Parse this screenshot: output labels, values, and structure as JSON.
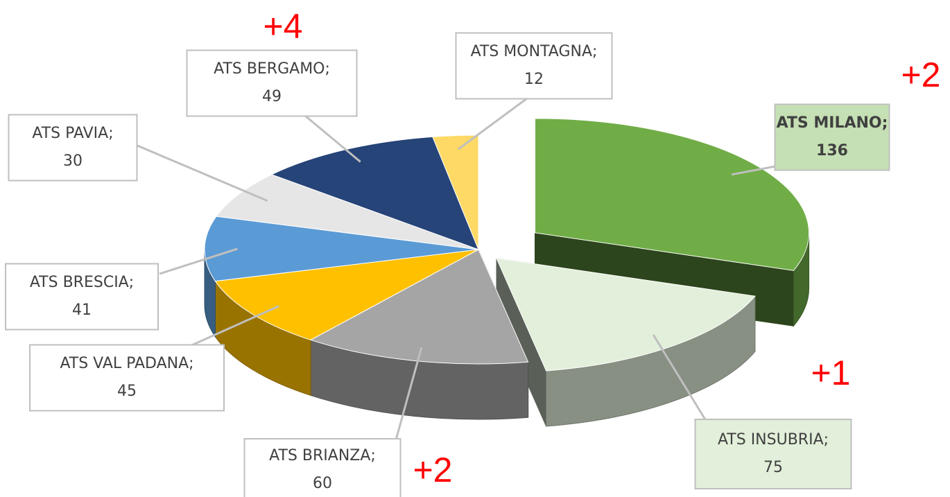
{
  "chart_data": {
    "type": "pie",
    "categories": [
      "ATS MILANO;",
      "ATS INSUBRIA;",
      "ATS BRIANZA;",
      "ATS VAL PADANA;",
      "ATS BRESCIA;",
      "ATS PAVIA;",
      "ATS BERGAMO;",
      "ATS MONTAGNA;"
    ],
    "values": [
      136,
      75,
      60,
      45,
      41,
      30,
      49,
      12
    ],
    "colors": [
      "#70ad47",
      "#e2efda",
      "#a5a5a5",
      "#ffc000",
      "#5b9bd5",
      "#e7e6e6",
      "#264478",
      "#ffd966"
    ],
    "annotations": [
      "+2",
      "+1",
      "+2",
      "+4"
    ]
  }
}
